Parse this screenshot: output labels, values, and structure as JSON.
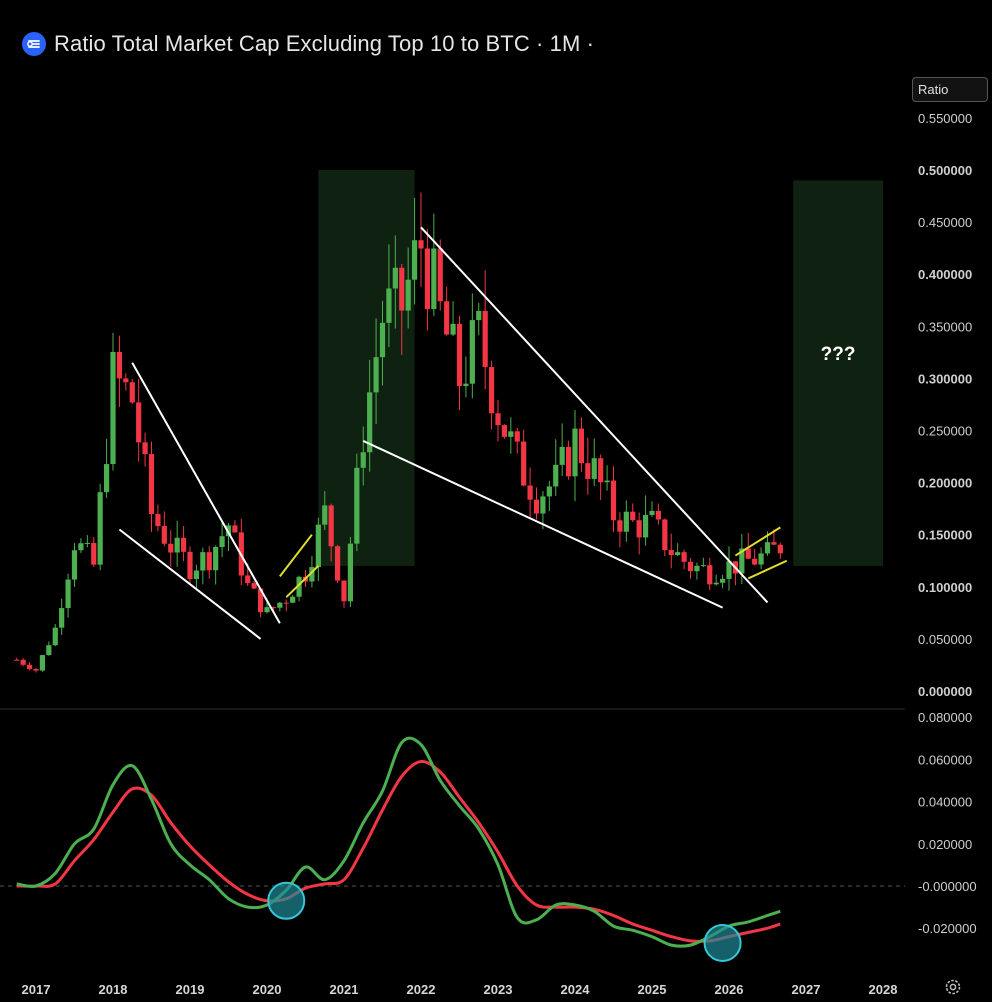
{
  "header": {
    "title": "Ratio Total Market Cap Excluding Top 10 to BTC · 1M · ",
    "logo_icon": "tradingview-logo-icon"
  },
  "price_scale": {
    "badge_label": "Ratio",
    "ticks": [
      "0.550000",
      "0.500000",
      "0.450000",
      "0.400000",
      "0.350000",
      "0.300000",
      "0.250000",
      "0.200000",
      "0.150000",
      "0.100000",
      "0.050000",
      "0.000000"
    ],
    "bold_ticks": [
      "0.500000",
      "0.400000",
      "0.300000",
      "0.200000",
      "0.150000",
      "0.100000",
      "0.000000"
    ]
  },
  "oscillator_scale": {
    "ticks": [
      "0.080000",
      "0.060000",
      "0.040000",
      "0.020000",
      "-0.000000",
      "-0.020000"
    ]
  },
  "time_axis": {
    "labels": [
      "2017",
      "2018",
      "2019",
      "2020",
      "2021",
      "2022",
      "2023",
      "2024",
      "2025",
      "2026",
      "2027",
      "2028"
    ]
  },
  "annotations": {
    "question_label": "???"
  },
  "colors": {
    "background": "#000000",
    "up_candle": "#4caf50",
    "down_candle": "#f23645",
    "zone_fill": "#0f2211",
    "trendline": "#ffffff",
    "channel": "#e0df2e",
    "fast_line": "#4caf50",
    "slow_line": "#f23645",
    "circle_marker": "#1f8a95"
  },
  "icons": {
    "settings": "gear-icon"
  },
  "chart_data": [
    {
      "type": "candlestick",
      "title": "Ratio Total Market Cap Excluding Top 10 to BTC",
      "interval": "1M",
      "ylim": [
        0,
        0.55
      ],
      "y_scale": "linear",
      "x_range": [
        "2017",
        "2028"
      ],
      "close_series_approx": {
        "x": [
          "2016-10",
          "2017-01",
          "2017-04",
          "2017-07",
          "2017-10",
          "2018-01",
          "2018-04",
          "2018-07",
          "2018-10",
          "2019-01",
          "2019-04",
          "2019-07",
          "2019-10",
          "2020-01",
          "2020-04",
          "2020-07",
          "2020-10",
          "2021-01",
          "2021-04",
          "2021-07",
          "2021-10",
          "2022-01",
          "2022-04",
          "2022-07",
          "2022-10",
          "2023-01",
          "2023-04",
          "2023-07",
          "2023-10",
          "2024-01",
          "2024-04",
          "2024-07",
          "2024-10",
          "2025-01",
          "2025-04",
          "2025-07",
          "2025-10",
          "2026-01",
          "2026-04",
          "2026-07",
          "2026-09"
        ],
        "close": [
          0.03,
          0.02,
          0.06,
          0.145,
          0.12,
          0.3,
          0.28,
          0.17,
          0.14,
          0.12,
          0.13,
          0.16,
          0.1,
          0.075,
          0.09,
          0.115,
          0.17,
          0.09,
          0.25,
          0.36,
          0.37,
          0.43,
          0.36,
          0.3,
          0.34,
          0.27,
          0.22,
          0.19,
          0.2,
          0.24,
          0.21,
          0.17,
          0.16,
          0.16,
          0.135,
          0.12,
          0.115,
          0.12,
          0.125,
          0.13,
          0.14
        ]
      },
      "zones": [
        {
          "label": "",
          "x_start": "2020-09",
          "x_end": "2021-12",
          "y_range": [
            0.12,
            0.5
          ]
        },
        {
          "label": "???",
          "x_start": "2026-11",
          "x_end": "2028-01",
          "y_range": [
            0.12,
            0.49
          ]
        }
      ],
      "trendlines": [
        {
          "from": [
            "2018-02",
            0.155
          ],
          "to": [
            "2019-12",
            0.05
          ]
        },
        {
          "from": [
            "2018-04",
            0.315
          ],
          "to": [
            "2020-03",
            0.065
          ]
        },
        {
          "from": [
            "2021-04",
            0.24
          ],
          "to": [
            "2025-12",
            0.08
          ]
        },
        {
          "from": [
            "2022-01",
            0.445
          ],
          "to": [
            "2026-07",
            0.085
          ]
        }
      ],
      "channels": [
        {
          "upper": [
            [
              "2020-03",
              0.11
            ],
            [
              "2020-08",
              0.15
            ]
          ],
          "lower": [
            [
              "2020-04",
              0.09
            ],
            [
              "2020-09",
              0.12
            ]
          ]
        },
        {
          "upper": [
            [
              "2026-02",
              0.13
            ],
            [
              "2026-09",
              0.157
            ]
          ],
          "lower": [
            [
              "2026-04",
              0.108
            ],
            [
              "2026-10",
              0.125
            ]
          ]
        }
      ]
    },
    {
      "type": "line",
      "ylim": [
        -0.03,
        0.08
      ],
      "x": [
        "2016-10",
        "2017-01",
        "2017-04",
        "2017-07",
        "2017-10",
        "2018-01",
        "2018-04",
        "2018-07",
        "2018-10",
        "2019-01",
        "2019-04",
        "2019-07",
        "2019-10",
        "2020-01",
        "2020-04",
        "2020-07",
        "2020-10",
        "2021-01",
        "2021-04",
        "2021-07",
        "2021-10",
        "2022-01",
        "2022-04",
        "2022-07",
        "2022-10",
        "2023-01",
        "2023-04",
        "2023-07",
        "2023-10",
        "2024-01",
        "2024-04",
        "2024-07",
        "2024-10",
        "2025-01",
        "2025-04",
        "2025-07",
        "2025-10",
        "2026-01",
        "2026-04",
        "2026-07",
        "2026-09"
      ],
      "series": [
        {
          "name": "",
          "color": "#4caf50",
          "values": [
            0.001,
            0.0,
            0.006,
            0.02,
            0.027,
            0.048,
            0.057,
            0.041,
            0.02,
            0.01,
            0.003,
            -0.006,
            -0.01,
            -0.009,
            -0.002,
            0.009,
            0.003,
            0.012,
            0.03,
            0.045,
            0.068,
            0.067,
            0.05,
            0.038,
            0.027,
            0.01,
            -0.015,
            -0.016,
            -0.009,
            -0.009,
            -0.012,
            -0.019,
            -0.021,
            -0.024,
            -0.028,
            -0.028,
            -0.024,
            -0.019,
            -0.017,
            -0.014,
            -0.012
          ]
        },
        {
          "name": "",
          "color": "#f23645",
          "values": [
            0.0,
            0.0,
            0.001,
            0.012,
            0.022,
            0.035,
            0.046,
            0.043,
            0.03,
            0.019,
            0.01,
            0.002,
            -0.004,
            -0.007,
            -0.006,
            -0.001,
            0.001,
            0.003,
            0.018,
            0.036,
            0.052,
            0.059,
            0.054,
            0.042,
            0.03,
            0.016,
            0.0,
            -0.009,
            -0.01,
            -0.01,
            -0.011,
            -0.014,
            -0.018,
            -0.021,
            -0.024,
            -0.026,
            -0.026,
            -0.024,
            -0.022,
            -0.02,
            -0.018
          ]
        }
      ],
      "zero_line": true,
      "markers": [
        {
          "x": "2020-04",
          "y": -0.007,
          "shape": "circle"
        },
        {
          "x": "2025-12",
          "y": -0.027,
          "shape": "circle"
        }
      ]
    }
  ]
}
